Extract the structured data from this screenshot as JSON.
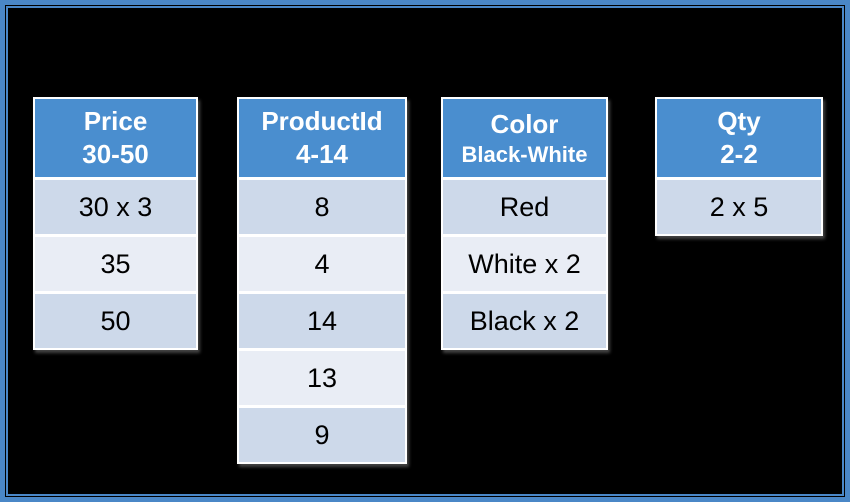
{
  "slide": {
    "background_color": "#000000",
    "frame_color": "#4a87c7"
  },
  "colors": {
    "header_bg": "#4a8ecf",
    "header_text": "#ffffff",
    "row_dark": "#cdd9ea",
    "row_light": "#e9edf5",
    "row_text": "#000000",
    "table_border": "#ffffff"
  },
  "tables": [
    {
      "id": "price",
      "title": "Price",
      "subtitle": "30-50",
      "rows": [
        "30 x 3",
        "35",
        "50"
      ]
    },
    {
      "id": "productid",
      "title": "ProductId",
      "subtitle": "4-14",
      "rows": [
        "8",
        "4",
        "14",
        "13",
        "9"
      ]
    },
    {
      "id": "color",
      "title": "Color",
      "subtitle": "Black-White",
      "rows": [
        "Red",
        "White x 2",
        "Black x 2"
      ]
    },
    {
      "id": "qty",
      "title": "Qty",
      "subtitle": "2-2",
      "rows": [
        "2 x 5"
      ]
    }
  ]
}
